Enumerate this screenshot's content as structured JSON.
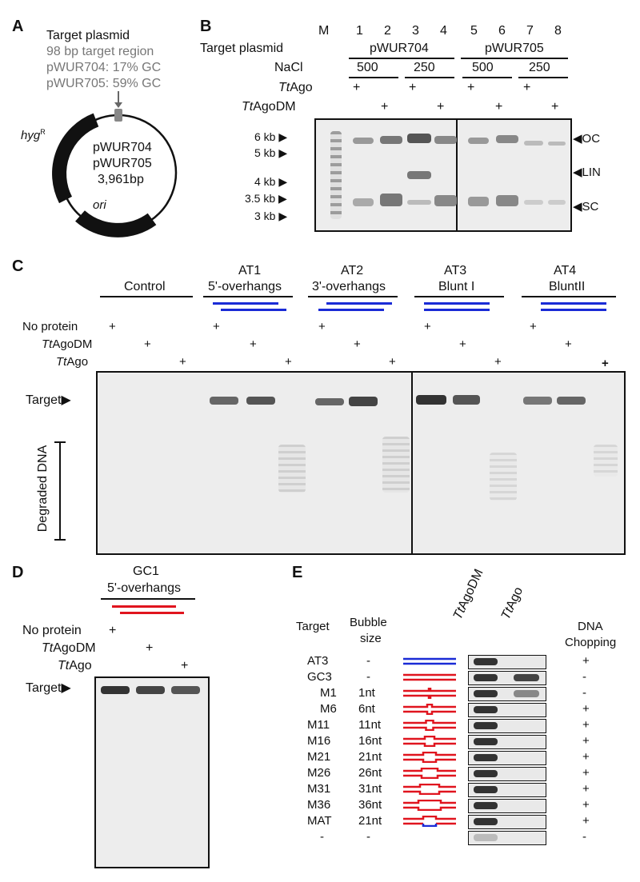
{
  "panelA": {
    "letter": "A",
    "title": "Target plasmid",
    "line1": "98 bp target region",
    "line2": "pWUR704: 17% GC",
    "line3": "pWUR705: 59% GC",
    "center1": "pWUR704",
    "center2": "pWUR705",
    "center3": "3,961bp",
    "hyg": "hyg",
    "hyg_sup": "R",
    "ori": "ori"
  },
  "panelB": {
    "letter": "B",
    "row_target": "Target plasmid",
    "row_nacl": "NaCl",
    "row_ttago_prefix": "Tt",
    "row_ttago_suffix": "Ago",
    "row_dm_prefix": "Tt",
    "row_dm_suffix": "AgoDM",
    "marker_lane": "M",
    "lanes": [
      "1",
      "2",
      "3",
      "4",
      "5",
      "6",
      "7",
      "8"
    ],
    "plasmid1": "pWUR704",
    "plasmid2": "pWUR705",
    "nacl": [
      "500",
      "250",
      "500",
      "250"
    ],
    "plus": "+",
    "sizes": [
      "6 kb",
      "5 kb",
      "4 kb",
      "3.5 kb",
      "3 kb"
    ],
    "forms": [
      "OC",
      "LIN",
      "SC"
    ]
  },
  "panelC": {
    "letter": "C",
    "groups": [
      {
        "l1": "",
        "l2": "Control"
      },
      {
        "l1": "AT1",
        "l2": "5'-overhangs"
      },
      {
        "l1": "AT2",
        "l2": "3'-overhangs"
      },
      {
        "l1": "AT3",
        "l2": "Blunt I"
      },
      {
        "l1": "AT4",
        "l2": "BluntII"
      }
    ],
    "row_noprot": "No protein",
    "row_dm_prefix": "Tt",
    "row_dm_suffix": "AgoDM",
    "row_ago_prefix": "Tt",
    "row_ago_suffix": "Ago",
    "plus": "+",
    "target": "Target",
    "degraded": "Degraded DNA"
  },
  "panelD": {
    "letter": "D",
    "l1": "GC1",
    "l2": "5'-overhangs",
    "row_noprot": "No protein",
    "row_dm_prefix": "Tt",
    "row_dm_suffix": "AgoDM",
    "row_ago_prefix": "Tt",
    "row_ago_suffix": "Ago",
    "plus": "+",
    "target": "Target"
  },
  "panelE": {
    "letter": "E",
    "h_target": "Target",
    "h_bubble1": "Bubble",
    "h_bubble2": "size",
    "h_dm_prefix": "Tt",
    "h_dm_suffix": "AgoDM",
    "h_ago_prefix": "Tt",
    "h_ago_suffix": "Ago",
    "h_chop1": "DNA",
    "h_chop2": "Chopping",
    "rows": [
      {
        "name": "AT3",
        "size": "-",
        "chop": "+"
      },
      {
        "name": "GC3",
        "size": "-",
        "chop": "-"
      },
      {
        "name": "M1",
        "size": "1nt",
        "chop": "-"
      },
      {
        "name": "M6",
        "size": "6nt",
        "chop": "+"
      },
      {
        "name": "M11",
        "size": "11nt",
        "chop": "+"
      },
      {
        "name": "M16",
        "size": "16nt",
        "chop": "+"
      },
      {
        "name": "M21",
        "size": "21nt",
        "chop": "+"
      },
      {
        "name": "M26",
        "size": "26nt",
        "chop": "+"
      },
      {
        "name": "M31",
        "size": "31nt",
        "chop": "+"
      },
      {
        "name": "M36",
        "size": "36nt",
        "chop": "+"
      },
      {
        "name": "MAT",
        "size": "21nt",
        "chop": "+"
      },
      {
        "name": "-",
        "size": "-",
        "chop": "-"
      }
    ]
  },
  "colors": {
    "blue": "#1a2bd6",
    "red": "#e0141e",
    "grey_text": "#777777",
    "plasmid": "#111111",
    "target_box": "#888888"
  }
}
